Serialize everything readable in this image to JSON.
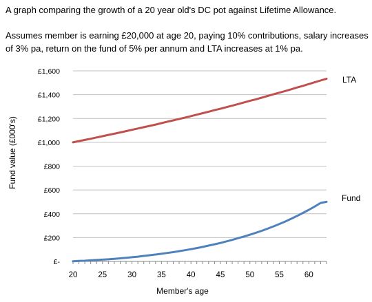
{
  "text": {
    "title": "A graph comparing the growth of a 20 year old's DC pot against Lifetime Allowance.",
    "subtitle": "Assumes member is earning £20,000 at age 20, paying 10% contributions, salary increases of 3% pa, return on the fund of 5% per annum and LTA increases at 1% pa."
  },
  "chart_data": {
    "type": "line",
    "title": "A graph comparing the growth of a 20 year old's DC pot against Lifetime Allowance.",
    "xlabel": "Member's age",
    "ylabel": "Fund value (£000's)",
    "xlim": [
      20,
      63
    ],
    "ylim": [
      0,
      1600
    ],
    "x_ticks": [
      20,
      25,
      30,
      35,
      40,
      45,
      50,
      55,
      60
    ],
    "x_tick_labels": [
      "20",
      "25",
      "30",
      "35",
      "40",
      "45",
      "50",
      "55",
      "60"
    ],
    "y_ticks": [
      0,
      200,
      400,
      600,
      800,
      1000,
      1200,
      1400,
      1600
    ],
    "y_tick_labels": [
      "£-",
      "£200",
      "£400",
      "£600",
      "£800",
      "£1,000",
      "£1,200",
      "£1,400",
      "£1,600"
    ],
    "grid": true,
    "legend": "direct labels at right",
    "x": [
      20,
      21,
      22,
      23,
      24,
      25,
      26,
      27,
      28,
      29,
      30,
      31,
      32,
      33,
      34,
      35,
      36,
      37,
      38,
      39,
      40,
      41,
      42,
      43,
      44,
      45,
      46,
      47,
      48,
      49,
      50,
      51,
      52,
      53,
      54,
      55,
      56,
      57,
      58,
      59,
      60,
      61,
      62,
      63
    ],
    "series": [
      {
        "name": "LTA",
        "color": "#c0504d",
        "values": [
          1000,
          1010,
          1020,
          1030,
          1041,
          1051,
          1062,
          1072,
          1083,
          1094,
          1105,
          1116,
          1127,
          1138,
          1149,
          1161,
          1173,
          1184,
          1196,
          1208,
          1220,
          1232,
          1245,
          1257,
          1270,
          1282,
          1295,
          1308,
          1321,
          1335,
          1348,
          1361,
          1375,
          1389,
          1403,
          1417,
          1431,
          1445,
          1460,
          1474,
          1489,
          1504,
          1519,
          1534
        ]
      },
      {
        "name": "Fund",
        "color": "#4f81bd",
        "values": [
          2,
          4,
          6,
          9,
          12,
          15,
          18,
          22,
          26,
          30,
          35,
          40,
          46,
          52,
          58,
          64,
          71,
          78,
          86,
          94,
          103,
          112,
          122,
          133,
          144,
          155,
          168,
          181,
          195,
          209,
          224,
          240,
          257,
          275,
          294,
          314,
          335,
          358,
          382,
          407,
          433,
          461,
          491,
          500
        ]
      }
    ]
  }
}
